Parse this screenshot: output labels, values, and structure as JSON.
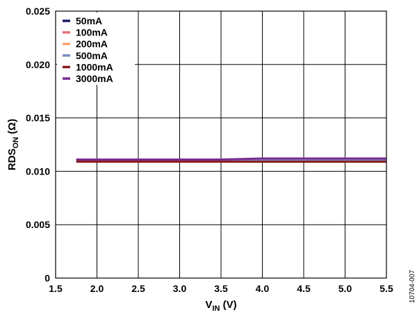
{
  "chart_data": {
    "type": "line",
    "xlabel_main": "V",
    "xlabel_sub": "IN",
    "xlabel_rest": " (V)",
    "ylabel_main": "RDS",
    "ylabel_sub": "ON",
    "ylabel_rest": " (Ω)",
    "xlim": [
      1.5,
      5.5
    ],
    "ylim": [
      0,
      0.025
    ],
    "x_ticks": [
      "1.5",
      "2.0",
      "2.5",
      "3.0",
      "3.5",
      "4.0",
      "4.5",
      "5.0",
      "5.5"
    ],
    "y_ticks": [
      "0",
      "0.005",
      "0.010",
      "0.015",
      "0.020",
      "0.025"
    ],
    "grid": true,
    "legend_position": "top-left",
    "figure_id": "10704-007",
    "series": [
      {
        "name": "50mA",
        "color": "#1a1a6e",
        "x": [
          1.75,
          2.5,
          3.0,
          3.5,
          4.0,
          4.5,
          5.0,
          5.5
        ],
        "y": [
          0.011,
          0.011,
          0.011,
          0.011,
          0.011,
          0.011,
          0.011,
          0.011
        ]
      },
      {
        "name": "100mA",
        "color": "#e8737b",
        "x": [
          1.75,
          2.5,
          3.0,
          3.5,
          4.0,
          4.5,
          5.0,
          5.5
        ],
        "y": [
          0.011,
          0.011,
          0.011,
          0.011,
          0.011,
          0.011,
          0.011,
          0.011
        ]
      },
      {
        "name": "200mA",
        "color": "#f5a46e",
        "x": [
          1.75,
          2.5,
          3.0,
          3.5,
          4.0,
          4.5,
          5.0,
          5.5
        ],
        "y": [
          0.011,
          0.011,
          0.011,
          0.011,
          0.011,
          0.011,
          0.011,
          0.011
        ]
      },
      {
        "name": "500mA",
        "color": "#7b8fbf",
        "x": [
          1.75,
          2.5,
          3.0,
          3.5,
          4.0,
          4.5,
          5.0,
          5.5
        ],
        "y": [
          0.011,
          0.011,
          0.011,
          0.011,
          0.011,
          0.011,
          0.011,
          0.011
        ]
      },
      {
        "name": "1000mA",
        "color": "#8b1a1a",
        "x": [
          1.75,
          2.5,
          3.0,
          3.5,
          4.0,
          4.5,
          5.0,
          5.5
        ],
        "y": [
          0.0109,
          0.0109,
          0.0109,
          0.0109,
          0.0109,
          0.0109,
          0.0109,
          0.0109
        ]
      },
      {
        "name": "3000mA",
        "color": "#7a2a8c",
        "x": [
          1.75,
          2.5,
          3.0,
          3.5,
          4.0,
          4.5,
          5.0,
          5.5
        ],
        "y": [
          0.0111,
          0.0111,
          0.0111,
          0.0111,
          0.0112,
          0.0112,
          0.0112,
          0.0112
        ]
      }
    ]
  }
}
